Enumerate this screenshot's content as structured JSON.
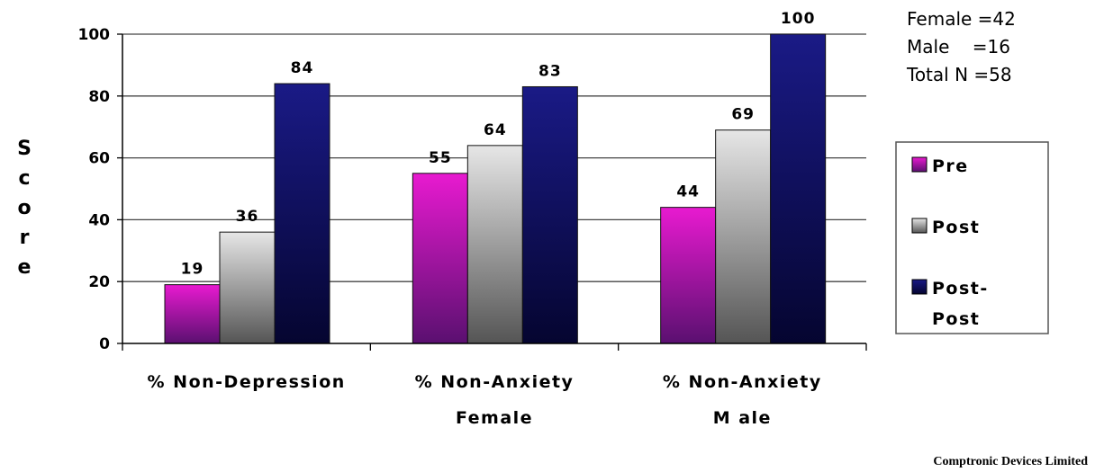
{
  "chart_data": {
    "type": "bar",
    "ylabel": "Score",
    "ylim": [
      0,
      100
    ],
    "yticks": [
      0,
      20,
      40,
      60,
      80,
      100
    ],
    "grid": true,
    "legend_position": "right",
    "categories": [
      [
        "% Non-Depression"
      ],
      [
        "% Non-Anxiety",
        "Female"
      ],
      [
        "% Non-Anxiety",
        "M ale"
      ]
    ],
    "series": [
      {
        "name": "Pre",
        "values": [
          19,
          55,
          44
        ],
        "color": "#e81ad0",
        "color_dark": "#5a1070"
      },
      {
        "name": "Post",
        "values": [
          36,
          64,
          69
        ],
        "color": "#e6e6e6",
        "color_dark": "#555555"
      },
      {
        "name": "Post-Post",
        "legend_lines": [
          "Post-",
          "Post"
        ],
        "values": [
          84,
          83,
          100
        ],
        "color": "#1a1a86",
        "color_dark": "#050530"
      }
    ],
    "annotations": [
      "Female =42",
      "Male    =16",
      "Total N =58"
    ],
    "data_labels": true
  },
  "credit": "Comptronic Devices Limited"
}
